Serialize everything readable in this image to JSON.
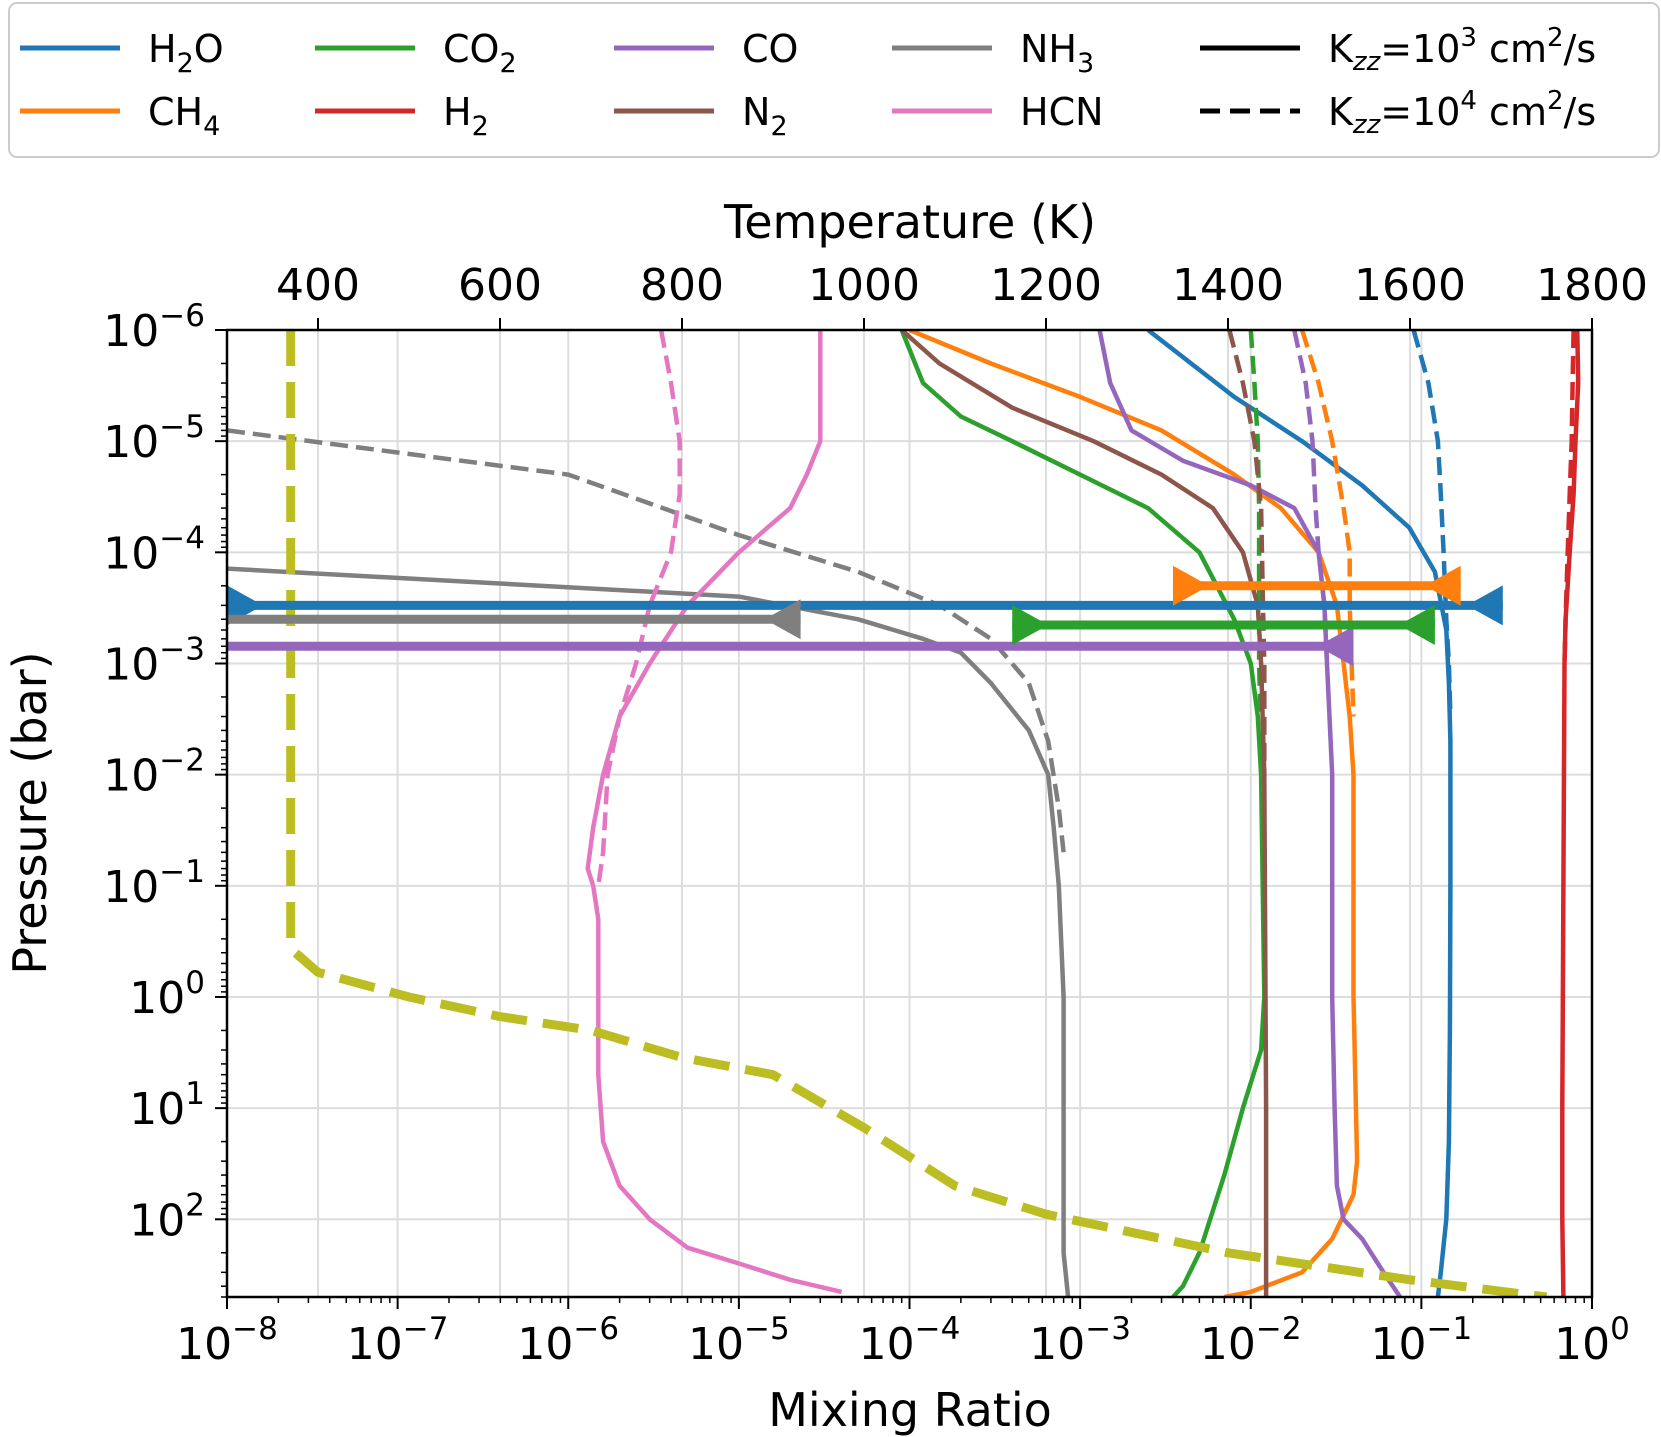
{
  "chart_data": {
    "type": "line",
    "title": "",
    "xlabel": "Mixing Ratio",
    "ylabel": "Pressure (bar)",
    "top_xlabel": "Temperature (K)",
    "x_scale": "log",
    "y_scale": "log",
    "xlim": [
      1e-08,
      1
    ],
    "ylim": [
      1e-06,
      500
    ],
    "top_xlim": [
      300,
      1800
    ],
    "grid": true,
    "legend_placement": "top (above plot)",
    "x_ticks": [
      {
        "v": 1e-08,
        "base": "10",
        "exp": "−8"
      },
      {
        "v": 1e-07,
        "base": "10",
        "exp": "−7"
      },
      {
        "v": 1e-06,
        "base": "10",
        "exp": "−6"
      },
      {
        "v": 1e-05,
        "base": "10",
        "exp": "−5"
      },
      {
        "v": 0.0001,
        "base": "10",
        "exp": "−4"
      },
      {
        "v": 0.001,
        "base": "10",
        "exp": "−3"
      },
      {
        "v": 0.01,
        "base": "10",
        "exp": "−2"
      },
      {
        "v": 0.1,
        "base": "10",
        "exp": "−1"
      },
      {
        "v": 1,
        "base": "10",
        "exp": "0"
      }
    ],
    "y_ticks": [
      {
        "v": 1e-06,
        "base": "10",
        "exp": "−6"
      },
      {
        "v": 1e-05,
        "base": "10",
        "exp": "−5"
      },
      {
        "v": 0.0001,
        "base": "10",
        "exp": "−4"
      },
      {
        "v": 0.001,
        "base": "10",
        "exp": "−3"
      },
      {
        "v": 0.01,
        "base": "10",
        "exp": "−2"
      },
      {
        "v": 0.1,
        "base": "10",
        "exp": "−1"
      },
      {
        "v": 1,
        "base": "10",
        "exp": "0"
      },
      {
        "v": 10,
        "base": "10",
        "exp": "1"
      },
      {
        "v": 100,
        "base": "10",
        "exp": "2"
      }
    ],
    "top_ticks": [
      {
        "v": 400,
        "label": "400"
      },
      {
        "v": 600,
        "label": "600"
      },
      {
        "v": 800,
        "label": "800"
      },
      {
        "v": 1000,
        "label": "1000"
      },
      {
        "v": 1200,
        "label": "1200"
      },
      {
        "v": 1400,
        "label": "1400"
      },
      {
        "v": 1600,
        "label": "1600"
      },
      {
        "v": 1800,
        "label": "1800"
      }
    ],
    "legend": [
      {
        "base": "H",
        "sub": "2",
        "rest": "O",
        "color": "#1f77b4",
        "dash": "solid"
      },
      {
        "base": "CH",
        "sub": "4",
        "rest": "",
        "color": "#ff7f0e",
        "dash": "solid"
      },
      {
        "base": "CO",
        "sub": "2",
        "rest": "",
        "color": "#2ca02c",
        "dash": "solid"
      },
      {
        "base": "H",
        "sub": "2",
        "rest": "",
        "color": "#d62728",
        "dash": "solid"
      },
      {
        "base": "CO",
        "sub": "",
        "rest": "",
        "color": "#9467bd",
        "dash": "solid"
      },
      {
        "base": "N",
        "sub": "2",
        "rest": "",
        "color": "#8c564b",
        "dash": "solid"
      },
      {
        "base": "NH",
        "sub": "3",
        "rest": "",
        "color": "#7f7f7f",
        "dash": "solid"
      },
      {
        "base": "HCN",
        "sub": "",
        "rest": "",
        "color": "#e377c2",
        "dash": "solid"
      },
      {
        "kzz": true,
        "pre": "K",
        "sub": "zz",
        "mid": "=10",
        "sup": "3",
        "post": " cm",
        "sup2": "2",
        "post2": "/s",
        "color": "#000000",
        "dash": "solid"
      },
      {
        "kzz": true,
        "pre": "K",
        "sub": "zz",
        "mid": "=10",
        "sup": "4",
        "post": " cm",
        "sup2": "2",
        "post2": "/s",
        "color": "#000000",
        "dash": "dashed"
      }
    ],
    "series": [
      {
        "name": "H2O",
        "color": "#1f77b4",
        "style": "solid",
        "points": [
          [
            0.0025,
            1e-06
          ],
          [
            0.008,
            4e-06
          ],
          [
            0.02,
            1e-05
          ],
          [
            0.045,
            2.5e-05
          ],
          [
            0.085,
            6e-05
          ],
          [
            0.12,
            0.00015
          ],
          [
            0.14,
            0.0005
          ],
          [
            0.145,
            0.0015
          ],
          [
            0.148,
            0.005
          ],
          [
            0.148,
            0.1
          ],
          [
            0.147,
            2
          ],
          [
            0.145,
            20
          ],
          [
            0.14,
            100
          ],
          [
            0.13,
            300
          ],
          [
            0.125,
            500
          ]
        ]
      },
      {
        "name": "H2O",
        "color": "#1f77b4",
        "style": "dashed",
        "points": [
          [
            0.09,
            1e-06
          ],
          [
            0.11,
            3e-06
          ],
          [
            0.125,
            1e-05
          ],
          [
            0.13,
            3e-05
          ],
          [
            0.135,
            0.0001
          ],
          [
            0.14,
            0.0004
          ],
          [
            0.145,
            0.001
          ],
          [
            0.148,
            0.003
          ]
        ]
      },
      {
        "name": "CH4",
        "color": "#ff7f0e",
        "style": "solid",
        "points": [
          [
            0.0001,
            1e-06
          ],
          [
            0.0003,
            2e-06
          ],
          [
            0.001,
            4e-06
          ],
          [
            0.003,
            8e-06
          ],
          [
            0.008,
            2e-05
          ],
          [
            0.015,
            4e-05
          ],
          [
            0.025,
            0.0001
          ],
          [
            0.032,
            0.0003
          ],
          [
            0.035,
            0.001
          ],
          [
            0.038,
            0.003
          ],
          [
            0.04,
            0.01
          ],
          [
            0.04,
            1
          ],
          [
            0.042,
            30
          ],
          [
            0.04,
            60
          ],
          [
            0.03,
            150
          ],
          [
            0.02,
            300
          ],
          [
            0.01,
            450
          ],
          [
            0.007,
            500
          ]
        ]
      },
      {
        "name": "CH4",
        "color": "#ff7f0e",
        "style": "dashed",
        "points": [
          [
            0.02,
            1e-06
          ],
          [
            0.025,
            3e-06
          ],
          [
            0.03,
            1e-05
          ],
          [
            0.035,
            4e-05
          ],
          [
            0.038,
            0.0001
          ],
          [
            0.038,
            0.0003
          ],
          [
            0.039,
            0.001
          ],
          [
            0.04,
            0.003
          ]
        ]
      },
      {
        "name": "CO2",
        "color": "#2ca02c",
        "style": "solid",
        "points": [
          [
            9e-05,
            1e-06
          ],
          [
            0.00012,
            3e-06
          ],
          [
            0.0002,
            6e-06
          ],
          [
            0.0004,
            1e-05
          ],
          [
            0.001,
            2e-05
          ],
          [
            0.0025,
            4e-05
          ],
          [
            0.005,
            0.0001
          ],
          [
            0.008,
            0.0004
          ],
          [
            0.01,
            0.001
          ],
          [
            0.011,
            0.003
          ],
          [
            0.0115,
            0.01
          ],
          [
            0.012,
            1
          ],
          [
            0.0115,
            3
          ],
          [
            0.009,
            10
          ],
          [
            0.007,
            40
          ],
          [
            0.005,
            200
          ],
          [
            0.004,
            400
          ],
          [
            0.0035,
            500
          ]
        ]
      },
      {
        "name": "CO2",
        "color": "#2ca02c",
        "style": "dashed",
        "points": [
          [
            0.01,
            1e-06
          ],
          [
            0.0105,
            3e-06
          ],
          [
            0.011,
            1e-05
          ],
          [
            0.0112,
            4e-05
          ],
          [
            0.0112,
            0.0002
          ],
          [
            0.0112,
            0.001
          ],
          [
            0.0114,
            0.003
          ]
        ]
      },
      {
        "name": "H2",
        "color": "#d62728",
        "style": "solid",
        "points": [
          [
            0.82,
            1e-06
          ],
          [
            0.83,
            3e-06
          ],
          [
            0.8,
            1e-05
          ],
          [
            0.78,
            3e-05
          ],
          [
            0.74,
            0.0001
          ],
          [
            0.7,
            0.0004
          ],
          [
            0.69,
            0.001
          ],
          [
            0.68,
            0.1
          ],
          [
            0.67,
            10
          ],
          [
            0.67,
            100
          ],
          [
            0.68,
            500
          ]
        ]
      },
      {
        "name": "H2",
        "color": "#d62728",
        "style": "dashed",
        "points": [
          [
            0.78,
            1e-06
          ],
          [
            0.77,
            3e-06
          ],
          [
            0.76,
            1e-05
          ],
          [
            0.74,
            3e-05
          ],
          [
            0.72,
            0.0001
          ],
          [
            0.7,
            0.0004
          ],
          [
            0.69,
            0.001
          ]
        ]
      },
      {
        "name": "CO",
        "color": "#9467bd",
        "style": "solid",
        "points": [
          [
            0.0013,
            1e-06
          ],
          [
            0.0015,
            3e-06
          ],
          [
            0.002,
            8e-06
          ],
          [
            0.004,
            1.5e-05
          ],
          [
            0.01,
            2.5e-05
          ],
          [
            0.018,
            4e-05
          ],
          [
            0.025,
            0.0001
          ],
          [
            0.027,
            0.0003
          ],
          [
            0.028,
            0.001
          ],
          [
            0.03,
            0.01
          ],
          [
            0.03,
            1
          ],
          [
            0.031,
            10
          ],
          [
            0.032,
            50
          ],
          [
            0.035,
            100
          ],
          [
            0.045,
            150
          ],
          [
            0.06,
            300
          ],
          [
            0.075,
            500
          ]
        ]
      },
      {
        "name": "CO",
        "color": "#9467bd",
        "style": "dashed",
        "points": [
          [
            0.018,
            1e-06
          ],
          [
            0.021,
            3e-06
          ],
          [
            0.023,
            1e-05
          ],
          [
            0.024,
            4e-05
          ],
          [
            0.025,
            0.0001
          ],
          [
            0.027,
            0.0003
          ],
          [
            0.028,
            0.001
          ]
        ]
      },
      {
        "name": "N2",
        "color": "#8c564b",
        "style": "solid",
        "points": [
          [
            9e-05,
            1e-06
          ],
          [
            0.00015,
            2e-06
          ],
          [
            0.0004,
            5e-06
          ],
          [
            0.0012,
            1e-05
          ],
          [
            0.003,
            2e-05
          ],
          [
            0.006,
            4e-05
          ],
          [
            0.009,
            0.0001
          ],
          [
            0.011,
            0.0003
          ],
          [
            0.0115,
            0.001
          ],
          [
            0.012,
            0.01
          ],
          [
            0.0123,
            10
          ],
          [
            0.0123,
            500
          ]
        ]
      },
      {
        "name": "N2",
        "color": "#8c564b",
        "style": "dashed",
        "points": [
          [
            0.0075,
            1e-06
          ],
          [
            0.009,
            3e-06
          ],
          [
            0.0105,
            1e-05
          ],
          [
            0.0115,
            4e-05
          ],
          [
            0.0118,
            0.0003
          ],
          [
            0.012,
            0.001
          ],
          [
            0.012,
            0.01
          ]
        ]
      },
      {
        "name": "NH3",
        "color": "#7f7f7f",
        "style": "solid",
        "points": [
          [
            1e-08,
            0.00014
          ],
          [
            1e-05,
            0.00025
          ],
          [
            5e-05,
            0.0004
          ],
          [
            0.00012,
            0.0006
          ],
          [
            0.0002,
            0.0008
          ],
          [
            0.0003,
            0.0015
          ],
          [
            0.0005,
            0.004
          ],
          [
            0.00065,
            0.01
          ],
          [
            0.0007,
            0.03
          ],
          [
            0.00075,
            0.1
          ],
          [
            0.0008,
            1
          ],
          [
            0.0008,
            10
          ],
          [
            0.0008,
            200
          ],
          [
            0.00085,
            500
          ]
        ]
      },
      {
        "name": "NH3",
        "color": "#7f7f7f",
        "style": "dashed",
        "points": [
          [
            1e-08,
            8e-06
          ],
          [
            1e-06,
            2e-05
          ],
          [
            1e-05,
            7e-05
          ],
          [
            5e-05,
            0.00015
          ],
          [
            0.00015,
            0.0003
          ],
          [
            0.0003,
            0.0006
          ],
          [
            0.0005,
            0.0015
          ],
          [
            0.00065,
            0.005
          ],
          [
            0.00075,
            0.02
          ],
          [
            0.0008,
            0.05
          ]
        ]
      },
      {
        "name": "HCN",
        "color": "#e377c2",
        "style": "solid",
        "points": [
          [
            3e-05,
            1e-06
          ],
          [
            3e-05,
            1e-05
          ],
          [
            2.5e-05,
            2e-05
          ],
          [
            2e-05,
            4e-05
          ],
          [
            1e-05,
            0.0001
          ],
          [
            5e-06,
            0.0003
          ],
          [
            3e-06,
            0.001
          ],
          [
            2e-06,
            0.003
          ],
          [
            1.6e-06,
            0.01
          ],
          [
            1.4e-06,
            0.03
          ],
          [
            1.3e-06,
            0.07
          ],
          [
            1.4e-06,
            0.1
          ],
          [
            1.5e-06,
            0.2
          ],
          [
            1.5e-06,
            5
          ],
          [
            1.6e-06,
            20
          ],
          [
            2e-06,
            50
          ],
          [
            3e-06,
            100
          ],
          [
            5e-06,
            180
          ],
          [
            1e-05,
            250
          ],
          [
            2e-05,
            350
          ],
          [
            4e-05,
            450
          ]
        ]
      },
      {
        "name": "HCN",
        "color": "#e377c2",
        "style": "dashed",
        "points": [
          [
            3.5e-06,
            1e-06
          ],
          [
            4e-06,
            3e-06
          ],
          [
            4.5e-06,
            1e-05
          ],
          [
            4.5e-06,
            3e-05
          ],
          [
            4e-06,
            0.0001
          ],
          [
            3e-06,
            0.0003
          ],
          [
            2.5e-06,
            0.001
          ],
          [
            2e-06,
            0.003
          ],
          [
            1.7e-06,
            0.01
          ],
          [
            1.6e-06,
            0.05
          ],
          [
            1.5e-06,
            0.1
          ]
        ]
      }
    ],
    "temperature_profile": {
      "name": "Temperature",
      "color": "#bcbd22",
      "style": "dashed",
      "points": [
        [
          370,
          1e-06
        ],
        [
          370,
          0.001
        ],
        [
          370,
          0.3
        ],
        [
          375,
          0.4
        ],
        [
          400,
          0.6
        ],
        [
          500,
          1
        ],
        [
          600,
          1.5
        ],
        [
          700,
          2
        ],
        [
          800,
          3.5
        ],
        [
          900,
          5
        ],
        [
          1000,
          15
        ],
        [
          1100,
          50
        ],
        [
          1200,
          90
        ],
        [
          1400,
          200
        ],
        [
          1600,
          350
        ],
        [
          1750,
          500
        ]
      ]
    },
    "markers": [
      {
        "name": "H2O",
        "color": "#1f77b4",
        "pressure": 0.0003,
        "x_from": 1e-08,
        "x_to": 0.3,
        "left_marker": true,
        "right_marker": true
      },
      {
        "name": "NH3",
        "color": "#7f7f7f",
        "pressure": 0.0004,
        "x_from": 1e-08,
        "x_to": 2.3e-05,
        "left_marker": false,
        "right_marker": true
      },
      {
        "name": "CO",
        "color": "#9467bd",
        "pressure": 0.0007,
        "x_from": 1e-08,
        "x_to": 0.04,
        "left_marker": false,
        "right_marker": true
      },
      {
        "name": "CO2",
        "color": "#2ca02c",
        "pressure": 0.00045,
        "x_from": 0.0004,
        "x_to": 0.12,
        "left_marker": true,
        "right_marker": true
      },
      {
        "name": "CH4",
        "color": "#ff7f0e",
        "pressure": 0.0002,
        "x_from": 0.0035,
        "x_to": 0.17,
        "left_marker": true,
        "right_marker": true
      }
    ]
  }
}
